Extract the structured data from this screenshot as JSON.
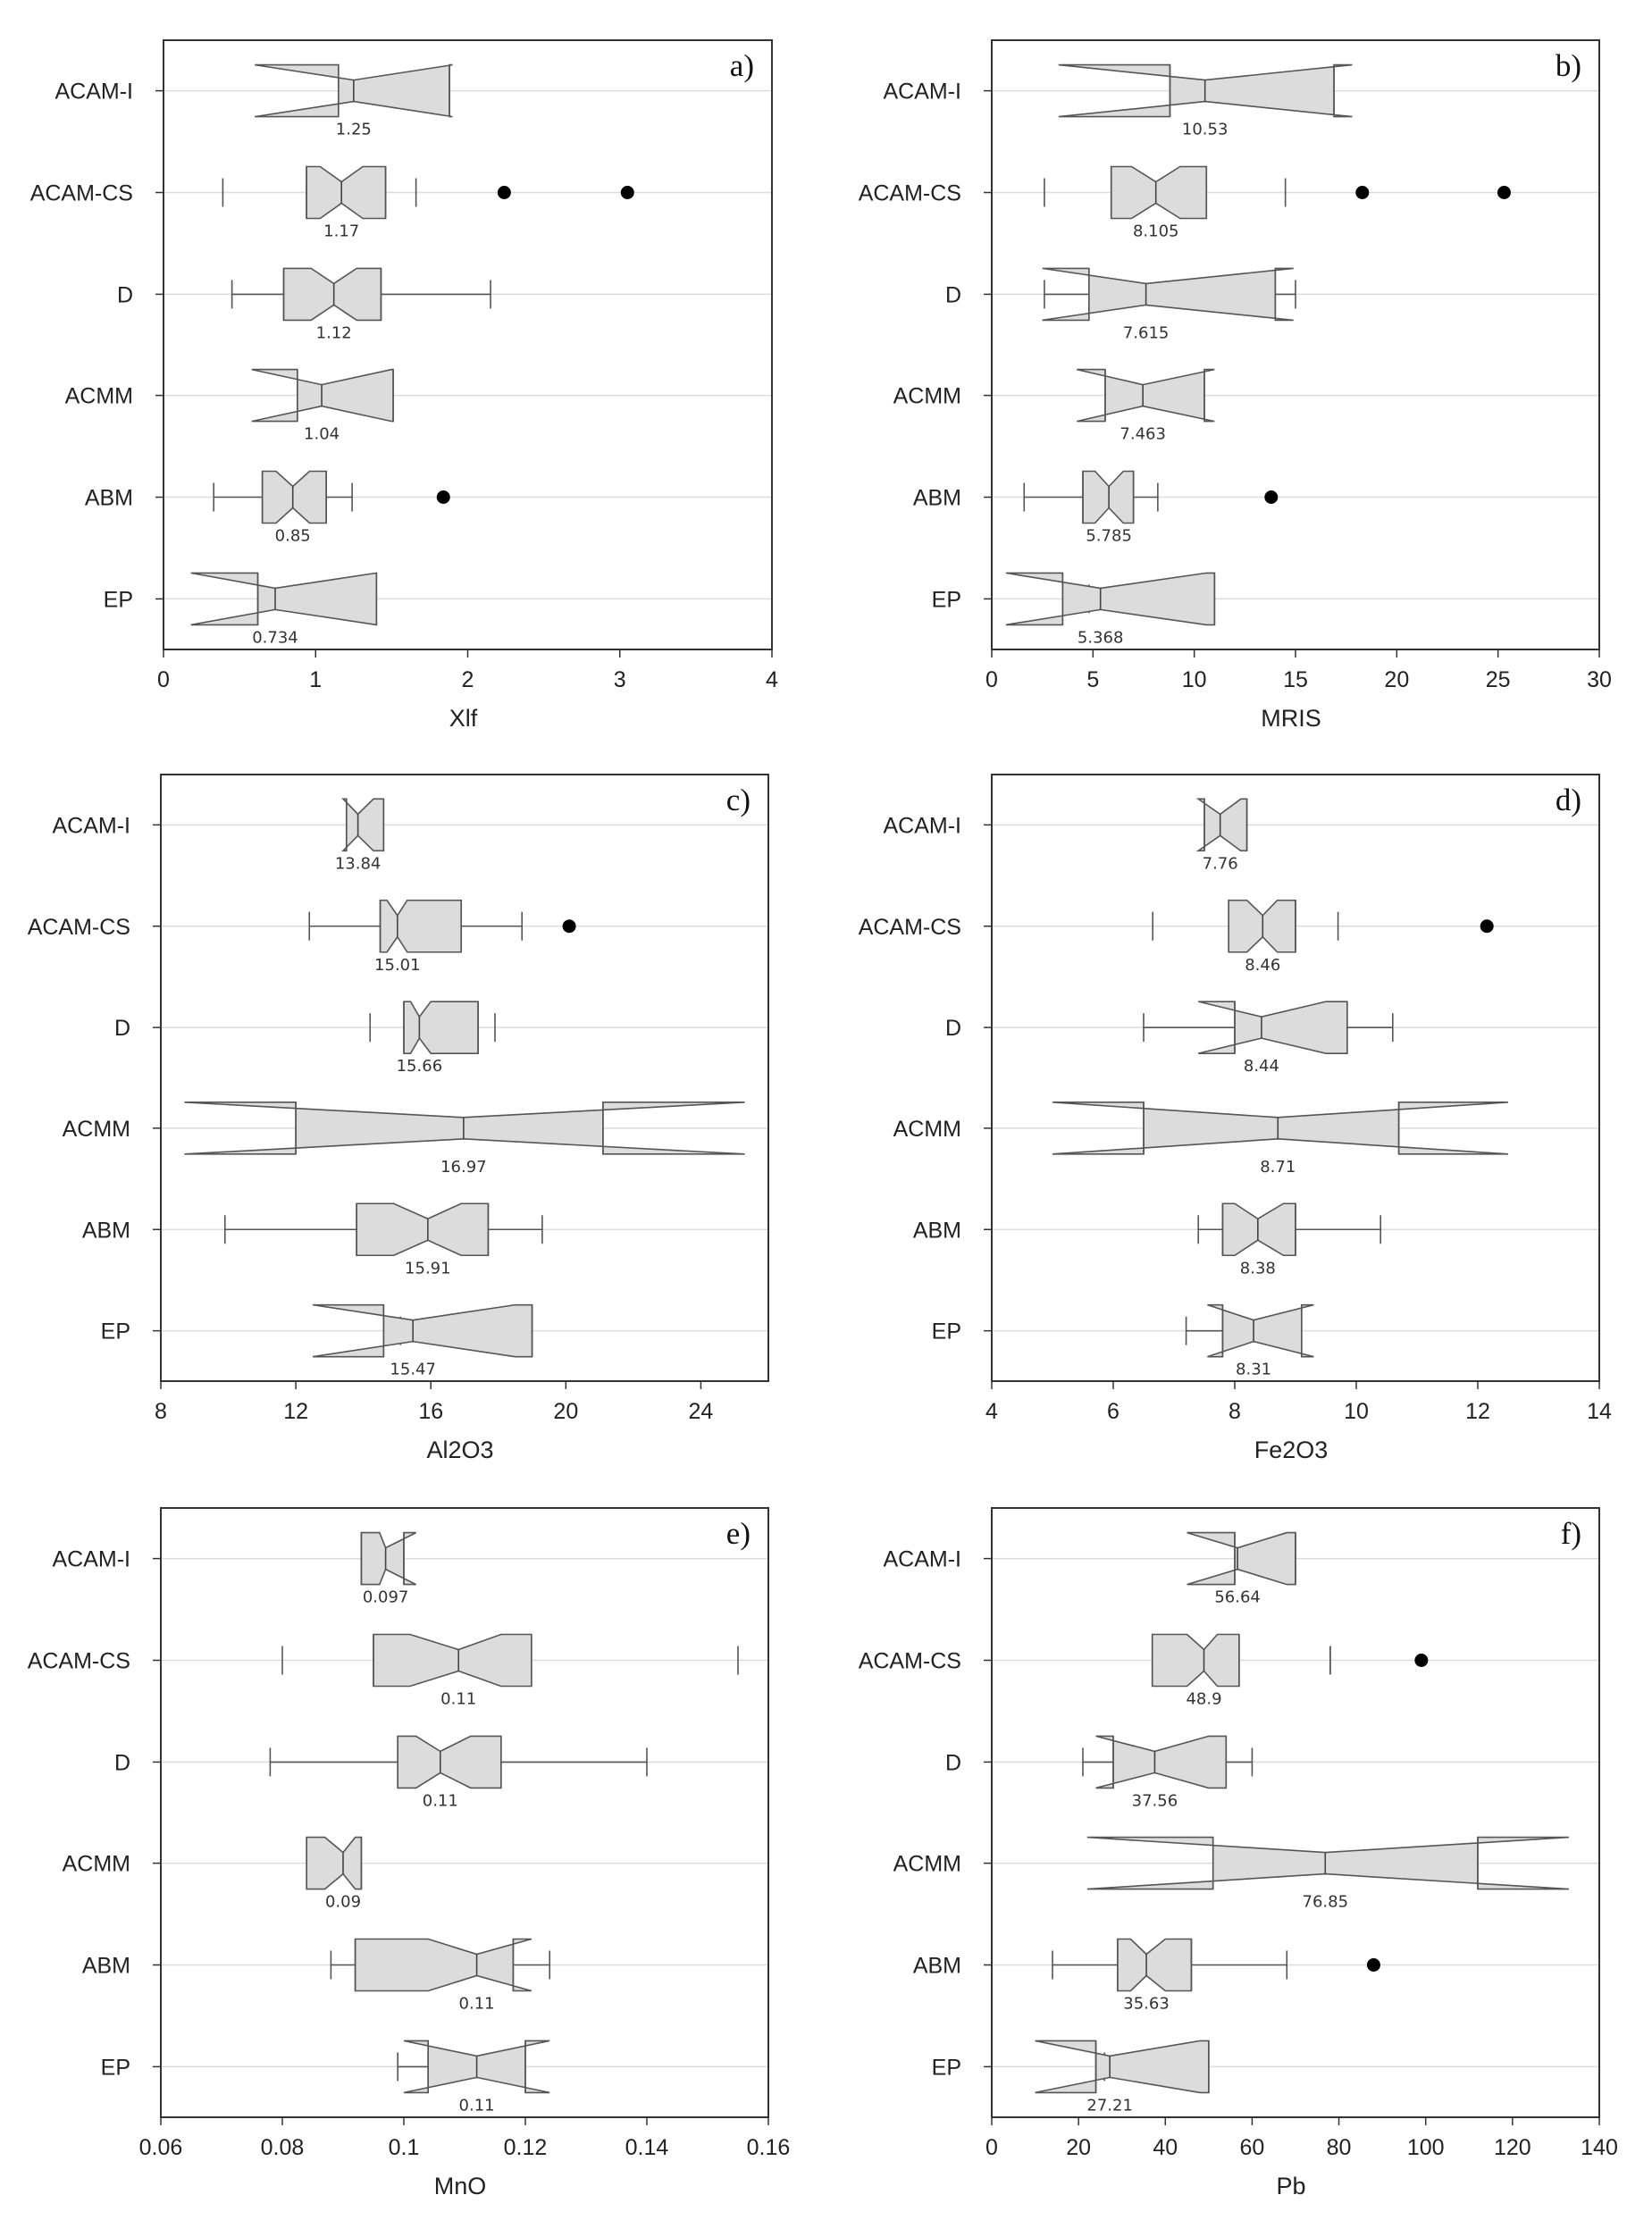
{
  "chart_data": [
    {
      "type": "notched-box",
      "panel": "a)",
      "xlabel": "Xlf",
      "xlim": [
        0,
        4
      ],
      "xticks": [
        0,
        1,
        2,
        3,
        4
      ],
      "categories": [
        "ACAM-I",
        "ACAM-CS",
        "D",
        "ACMM",
        "ABM",
        "EP"
      ],
      "boxes": [
        {
          "q1": 1.15,
          "median": 1.25,
          "q3": 1.88,
          "notch_lo": 0.6,
          "notch_hi": 1.9,
          "whisker_lo": null,
          "whisker_hi": null,
          "outliers": [],
          "label": "1.25"
        },
        {
          "q1": 0.94,
          "median": 1.17,
          "q3": 1.46,
          "notch_lo": 1.03,
          "notch_hi": 1.31,
          "whisker_lo": 0.39,
          "whisker_hi": 1.66,
          "outliers": [
            2.24,
            3.05
          ],
          "label": "1.17",
          "whisker_lines": false
        },
        {
          "q1": 0.79,
          "median": 1.12,
          "q3": 1.43,
          "notch_lo": 0.97,
          "notch_hi": 1.27,
          "whisker_lo": 0.45,
          "whisker_hi": 2.15,
          "outliers": [],
          "label": "1.12",
          "whisker_lines": true
        },
        {
          "q1": 0.88,
          "median": 1.04,
          "q3": 1.51,
          "notch_lo": 0.58,
          "notch_hi": 1.5,
          "whisker_lo": null,
          "whisker_hi": null,
          "outliers": [],
          "label": "1.04"
        },
        {
          "q1": 0.65,
          "median": 0.85,
          "q3": 1.07,
          "notch_lo": 0.74,
          "notch_hi": 0.96,
          "whisker_lo": 0.33,
          "whisker_hi": 1.24,
          "outliers": [
            1.84
          ],
          "label": "0.85",
          "whisker_lines": true
        },
        {
          "q1": 0.62,
          "median": 0.734,
          "q3": 1.4,
          "notch_lo": 0.18,
          "notch_hi": 1.4,
          "whisker_lo": null,
          "whisker_hi": null,
          "outliers": [],
          "label": "0.734"
        }
      ]
    },
    {
      "type": "notched-box",
      "panel": "b)",
      "xlabel": "MRIS",
      "xlim": [
        0,
        30
      ],
      "xticks": [
        0,
        5,
        10,
        15,
        20,
        25,
        30
      ],
      "categories": [
        "ACAM-I",
        "ACAM-CS",
        "D",
        "ACMM",
        "ABM",
        "EP"
      ],
      "boxes": [
        {
          "q1": 8.8,
          "median": 10.53,
          "q3": 16.9,
          "notch_lo": 3.3,
          "notch_hi": 17.8,
          "whisker_lo": null,
          "whisker_hi": null,
          "outliers": [],
          "label": "10.53"
        },
        {
          "q1": 5.9,
          "median": 8.105,
          "q3": 10.6,
          "notch_lo": 6.9,
          "notch_hi": 9.3,
          "whisker_lo": 2.6,
          "whisker_hi": 14.5,
          "outliers": [
            18.3,
            25.3
          ],
          "label": "8.105",
          "whisker_lines": false
        },
        {
          "q1": 4.8,
          "median": 7.615,
          "q3": 14.0,
          "notch_lo": 2.5,
          "notch_hi": 14.9,
          "whisker_lo": 2.6,
          "whisker_hi": 15.0,
          "outliers": [],
          "label": "7.615",
          "whisker_lines": true
        },
        {
          "q1": 5.6,
          "median": 7.463,
          "q3": 10.5,
          "notch_lo": 4.2,
          "notch_hi": 11.0,
          "whisker_lo": null,
          "whisker_hi": null,
          "outliers": [],
          "label": "7.463"
        },
        {
          "q1": 4.5,
          "median": 5.785,
          "q3": 7.0,
          "notch_lo": 5.1,
          "notch_hi": 6.5,
          "whisker_lo": 1.6,
          "whisker_hi": 8.2,
          "outliers": [
            13.8
          ],
          "label": "5.785",
          "whisker_lines": true
        },
        {
          "q1": 3.5,
          "median": 5.368,
          "q3": 11.0,
          "notch_lo": 0.7,
          "notch_hi": 10.6,
          "whisker_lo": 3.5,
          "whisker_hi": 4.8,
          "outliers": [],
          "label": "5.368",
          "whisker_lines": true
        }
      ]
    },
    {
      "type": "notched-box",
      "panel": "c)",
      "xlabel": "Al2O3",
      "xlim": [
        8,
        26
      ],
      "xticks": [
        8,
        12,
        16,
        20,
        24
      ],
      "categories": [
        "ACAM-I",
        "ACAM-CS",
        "D",
        "ACMM",
        "ABM",
        "EP"
      ],
      "boxes": [
        {
          "q1": 13.5,
          "median": 13.84,
          "q3": 14.6,
          "notch_lo": 13.4,
          "notch_hi": 14.3,
          "whisker_lo": null,
          "whisker_hi": null,
          "outliers": [],
          "label": "13.84"
        },
        {
          "q1": 14.5,
          "median": 15.01,
          "q3": 16.9,
          "notch_lo": 14.7,
          "notch_hi": 15.3,
          "whisker_lo": 12.4,
          "whisker_hi": 18.7,
          "outliers": [
            20.1
          ],
          "label": "15.01",
          "whisker_lines": true
        },
        {
          "q1": 15.2,
          "median": 15.66,
          "q3": 17.4,
          "notch_lo": 15.4,
          "notch_hi": 16.0,
          "whisker_lo": 14.2,
          "whisker_hi": 17.9,
          "outliers": [],
          "label": "15.66",
          "whisker_lines": false
        },
        {
          "q1": 12.0,
          "median": 16.97,
          "q3": 21.1,
          "notch_lo": 8.7,
          "notch_hi": 25.3,
          "whisker_lo": null,
          "whisker_hi": null,
          "outliers": [],
          "label": "16.97"
        },
        {
          "q1": 13.8,
          "median": 15.91,
          "q3": 17.7,
          "notch_lo": 14.9,
          "notch_hi": 16.9,
          "whisker_lo": 9.9,
          "whisker_hi": 19.3,
          "outliers": [],
          "label": "15.91",
          "whisker_lines": true
        },
        {
          "q1": 14.6,
          "median": 15.47,
          "q3": 19.0,
          "notch_lo": 12.5,
          "notch_hi": 18.5,
          "whisker_lo": 14.6,
          "whisker_hi": 15.1,
          "outliers": [],
          "label": "15.47",
          "whisker_lines": true
        }
      ]
    },
    {
      "type": "notched-box",
      "panel": "d)",
      "xlabel": "Fe2O3",
      "xlim": [
        4,
        14
      ],
      "xticks": [
        4,
        6,
        8,
        10,
        12,
        14
      ],
      "categories": [
        "ACAM-I",
        "ACAM-CS",
        "D",
        "ACMM",
        "ABM",
        "EP"
      ],
      "boxes": [
        {
          "q1": 7.5,
          "median": 7.76,
          "q3": 8.2,
          "notch_lo": 7.4,
          "notch_hi": 8.1,
          "whisker_lo": null,
          "whisker_hi": null,
          "outliers": [],
          "label": "7.76"
        },
        {
          "q1": 7.9,
          "median": 8.46,
          "q3": 9.0,
          "notch_lo": 8.2,
          "notch_hi": 8.7,
          "whisker_lo": 6.65,
          "whisker_hi": 9.7,
          "outliers": [
            12.15
          ],
          "label": "8.46",
          "whisker_lines": false
        },
        {
          "q1": 8.0,
          "median": 8.44,
          "q3": 9.85,
          "notch_lo": 7.4,
          "notch_hi": 9.5,
          "whisker_lo": 6.5,
          "whisker_hi": 10.6,
          "outliers": [],
          "label": "8.44",
          "whisker_lines": true
        },
        {
          "q1": 6.5,
          "median": 8.71,
          "q3": 10.7,
          "notch_lo": 5.0,
          "notch_hi": 12.5,
          "whisker_lo": null,
          "whisker_hi": null,
          "outliers": [],
          "label": "8.71"
        },
        {
          "q1": 7.8,
          "median": 8.38,
          "q3": 9.0,
          "notch_lo": 8.0,
          "notch_hi": 8.8,
          "whisker_lo": 7.4,
          "whisker_hi": 10.4,
          "outliers": [],
          "label": "8.38",
          "whisker_lines": true
        },
        {
          "q1": 7.8,
          "median": 8.31,
          "q3": 9.1,
          "notch_lo": 7.55,
          "notch_hi": 9.3,
          "whisker_lo": 7.2,
          "whisker_hi": 7.8,
          "outliers": [],
          "label": "8.31",
          "whisker_lines": true
        }
      ]
    },
    {
      "type": "notched-box",
      "panel": "e)",
      "xlabel": "MnO",
      "xlim": [
        0.06,
        0.16
      ],
      "xticks": [
        0.06,
        0.08,
        0.1,
        0.12,
        0.14,
        0.16
      ],
      "categories": [
        "ACAM-I",
        "ACAM-CS",
        "D",
        "ACMM",
        "ABM",
        "EP"
      ],
      "boxes": [
        {
          "q1": 0.093,
          "median": 0.097,
          "q3": 0.1,
          "notch_lo": 0.096,
          "notch_hi": 0.102,
          "whisker_lo": null,
          "whisker_hi": null,
          "outliers": [],
          "label": "0.097"
        },
        {
          "q1": 0.095,
          "median": 0.109,
          "q3": 0.121,
          "notch_lo": 0.101,
          "notch_hi": 0.116,
          "whisker_lo": 0.08,
          "whisker_hi": 0.155,
          "outliers": [],
          "label": "0.11",
          "whisker_lines": false
        },
        {
          "q1": 0.099,
          "median": 0.106,
          "q3": 0.116,
          "notch_lo": 0.102,
          "notch_hi": 0.111,
          "whisker_lo": 0.078,
          "whisker_hi": 0.14,
          "outliers": [],
          "label": "0.11",
          "whisker_lines": true
        },
        {
          "q1": 0.084,
          "median": 0.09,
          "q3": 0.093,
          "notch_lo": 0.087,
          "notch_hi": 0.092,
          "whisker_lo": null,
          "whisker_hi": null,
          "outliers": [],
          "label": "0.09"
        },
        {
          "q1": 0.092,
          "median": 0.112,
          "q3": 0.118,
          "notch_lo": 0.104,
          "notch_hi": 0.121,
          "whisker_lo": 0.088,
          "whisker_hi": 0.124,
          "outliers": [],
          "label": "0.11",
          "whisker_lines": true
        },
        {
          "q1": 0.104,
          "median": 0.112,
          "q3": 0.12,
          "notch_lo": 0.1,
          "notch_hi": 0.124,
          "whisker_lo": 0.099,
          "whisker_hi": 0.104,
          "outliers": [],
          "label": "0.11",
          "whisker_lines": true
        }
      ]
    },
    {
      "type": "notched-box",
      "panel": "f)",
      "xlabel": "Pb",
      "xlim": [
        0,
        140
      ],
      "xticks": [
        0,
        20,
        40,
        60,
        80,
        100,
        120,
        140
      ],
      "categories": [
        "ACAM-I",
        "ACAM-CS",
        "D",
        "ACMM",
        "ABM",
        "EP"
      ],
      "boxes": [
        {
          "q1": 56.0,
          "median": 56.64,
          "q3": 70.0,
          "notch_lo": 45.0,
          "notch_hi": 68.0,
          "whisker_lo": null,
          "whisker_hi": null,
          "outliers": [],
          "label": "56.64"
        },
        {
          "q1": 37.0,
          "median": 48.9,
          "q3": 57.0,
          "notch_lo": 45.0,
          "notch_hi": 52.0,
          "whisker_lo": 78.0,
          "whisker_hi": 78.0,
          "outliers": [
            99.0
          ],
          "label": "48.9",
          "whisker_lines": false
        },
        {
          "q1": 28.0,
          "median": 37.56,
          "q3": 54.0,
          "notch_lo": 24.0,
          "notch_hi": 50.0,
          "whisker_lo": 21.0,
          "whisker_hi": 60.0,
          "outliers": [],
          "label": "37.56",
          "whisker_lines": true
        },
        {
          "q1": 51.0,
          "median": 76.85,
          "q3": 112.0,
          "notch_lo": 22.0,
          "notch_hi": 133.0,
          "whisker_lo": null,
          "whisker_hi": null,
          "outliers": [],
          "label": "76.85"
        },
        {
          "q1": 29.0,
          "median": 35.63,
          "q3": 46.0,
          "notch_lo": 32.0,
          "notch_hi": 40.0,
          "whisker_lo": 14.0,
          "whisker_hi": 68.0,
          "outliers": [
            88.0
          ],
          "label": "35.63",
          "whisker_lines": true
        },
        {
          "q1": 24.0,
          "median": 27.21,
          "q3": 50.0,
          "notch_lo": 10.0,
          "notch_hi": 48.0,
          "whisker_lo": 24.0,
          "whisker_hi": 26.0,
          "outliers": [],
          "label": "27.21",
          "whisker_lines": true
        }
      ]
    }
  ]
}
